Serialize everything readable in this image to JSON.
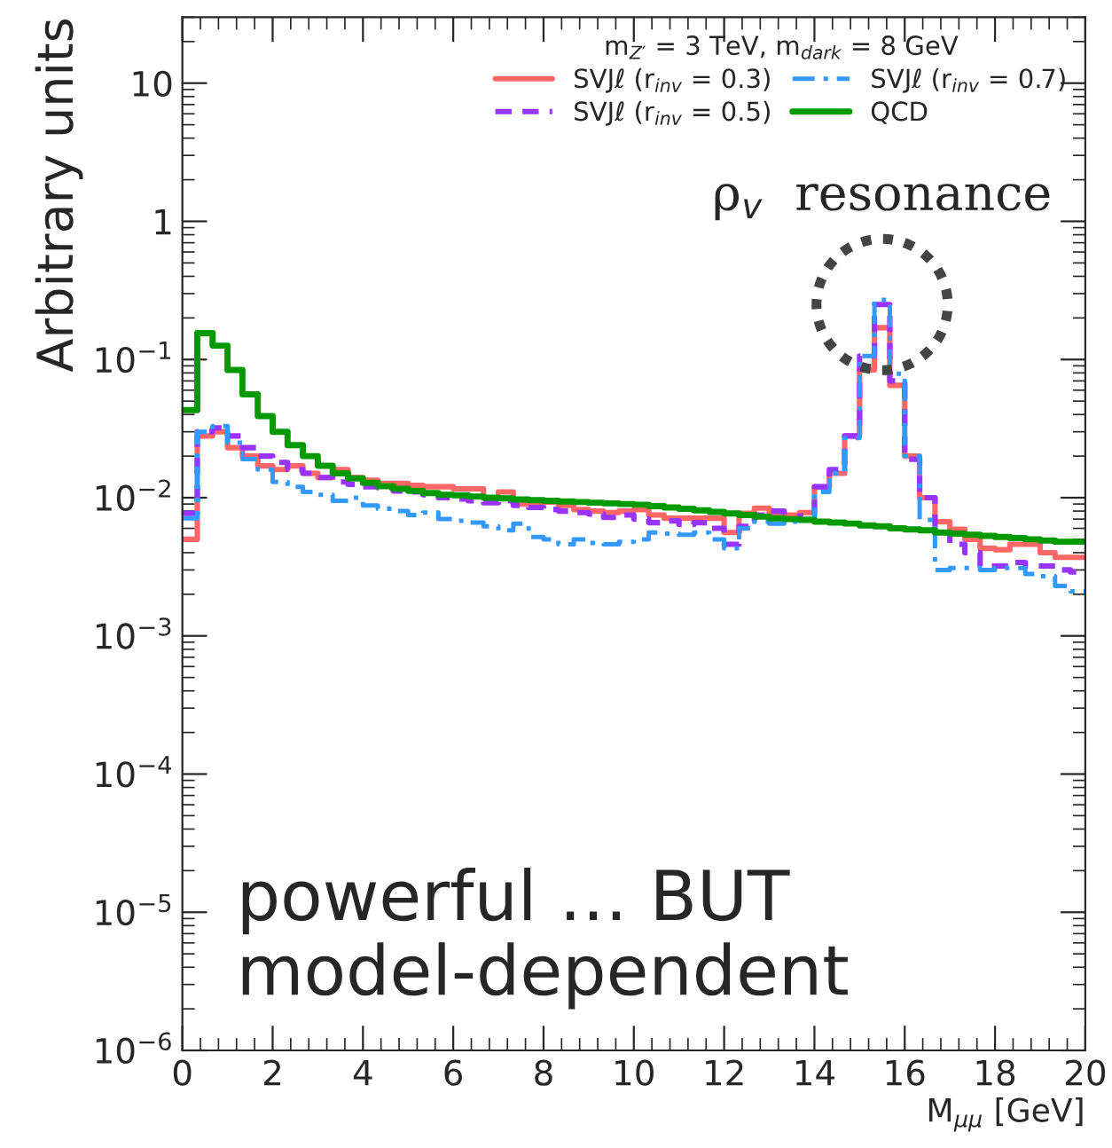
{
  "chart_data": {
    "type": "histogram",
    "xlabel": "M$_{μμ}$ [GeV]",
    "ylabel": "Arbitrary units",
    "legend_title": "m$_{Z′}$ = 3 TeV, m$_{dark}$ = 8 GeV",
    "bins": [
      0,
      0.33,
      0.67,
      1,
      1.33,
      1.67,
      2,
      2.33,
      2.67,
      3,
      3.33,
      3.67,
      4,
      4.33,
      4.67,
      5,
      5.33,
      5.67,
      6,
      6.33,
      6.67,
      7,
      7.33,
      7.67,
      8,
      8.33,
      8.67,
      9,
      9.33,
      9.67,
      10,
      10.33,
      10.67,
      11,
      11.33,
      11.67,
      12,
      12.33,
      12.67,
      13,
      13.33,
      13.67,
      14,
      14.33,
      14.67,
      15,
      15.33,
      15.67,
      16,
      16.33,
      16.67,
      17,
      17.33,
      17.67,
      18,
      18.33,
      18.67,
      19,
      19.33,
      19.67,
      20
    ],
    "series": [
      {
        "name": "SVJℓ (r$_{inv}$ = 0.3)",
        "color": "#ff6666",
        "line_style": "solid",
        "values": [
          0.005,
          0.028,
          0.03,
          0.023,
          0.02,
          0.017,
          0.016,
          0.017,
          0.015,
          0.014,
          0.016,
          0.014,
          0.0134,
          0.0127,
          0.0127,
          0.0123,
          0.012,
          0.012,
          0.0116,
          0.0116,
          0.01,
          0.011,
          0.009,
          0.009,
          0.0093,
          0.0088,
          0.0082,
          0.008,
          0.0078,
          0.008,
          0.0082,
          0.0075,
          0.0071,
          0.0071,
          0.0071,
          0.0071,
          0.0056,
          0.0077,
          0.0084,
          0.0075,
          0.0075,
          0.0078,
          0.0119,
          0.015,
          0.028,
          0.084,
          0.17,
          0.065,
          0.02,
          0.01,
          0.0067,
          0.0059,
          0.005,
          0.0043,
          0.0042,
          0.0046,
          0.0046,
          0.004,
          0.0037,
          0.0037
        ]
      },
      {
        "name": "SVJℓ (r$_{inv}$ = 0.5)",
        "color": "#9933ff",
        "line_style": "dashed",
        "values": [
          0.0077,
          0.03,
          0.032,
          0.028,
          0.023,
          0.02,
          0.018,
          0.016,
          0.015,
          0.014,
          0.013,
          0.0125,
          0.012,
          0.0118,
          0.0112,
          0.011,
          0.0105,
          0.01,
          0.0098,
          0.0095,
          0.0092,
          0.0095,
          0.0088,
          0.0085,
          0.0082,
          0.008,
          0.0078,
          0.0076,
          0.0072,
          0.0075,
          0.007,
          0.0066,
          0.0068,
          0.0064,
          0.0066,
          0.006,
          0.0046,
          0.0062,
          0.0075,
          0.008,
          0.007,
          0.0074,
          0.012,
          0.016,
          0.028,
          0.106,
          0.25,
          0.07,
          0.019,
          0.01,
          0.0056,
          0.0046,
          0.004,
          0.0032,
          0.0032,
          0.0034,
          0.0032,
          0.0032,
          0.003,
          0.0029
        ]
      },
      {
        "name": "SVJℓ (r$_{inv}$ = 0.7)",
        "color": "#3399ff",
        "line_style": "dashdot",
        "values": [
          0.0071,
          0.03,
          0.033,
          0.025,
          0.019,
          0.016,
          0.013,
          0.012,
          0.011,
          0.0105,
          0.0095,
          0.01,
          0.0088,
          0.0083,
          0.008,
          0.0075,
          0.0078,
          0.007,
          0.0068,
          0.0066,
          0.0062,
          0.0058,
          0.0065,
          0.0052,
          0.005,
          0.0046,
          0.005,
          0.0047,
          0.0046,
          0.0048,
          0.005,
          0.0056,
          0.0055,
          0.0054,
          0.0056,
          0.005,
          0.0043,
          0.006,
          0.0067,
          0.0065,
          0.0067,
          0.007,
          0.011,
          0.015,
          0.027,
          0.106,
          0.27,
          0.079,
          0.02,
          0.0069,
          0.003,
          0.0031,
          0.0031,
          0.003,
          0.0031,
          0.0031,
          0.0028,
          0.0027,
          0.0023,
          0.0021
        ]
      },
      {
        "name": "QCD",
        "color": "#009900",
        "line_style": "solid",
        "values": [
          0.043,
          0.155,
          0.126,
          0.084,
          0.056,
          0.039,
          0.03,
          0.024,
          0.02,
          0.017,
          0.015,
          0.0138,
          0.0128,
          0.0121,
          0.0116,
          0.0112,
          0.0108,
          0.0105,
          0.0104,
          0.0102,
          0.01,
          0.0099,
          0.0097,
          0.0096,
          0.0095,
          0.0094,
          0.0093,
          0.0092,
          0.0091,
          0.009,
          0.0089,
          0.0087,
          0.0085,
          0.0083,
          0.0081,
          0.0079,
          0.0077,
          0.0075,
          0.0073,
          0.0071,
          0.007,
          0.0069,
          0.0067,
          0.0066,
          0.0065,
          0.0063,
          0.0062,
          0.006,
          0.0059,
          0.0058,
          0.0056,
          0.0055,
          0.0054,
          0.0053,
          0.0052,
          0.0051,
          0.005,
          0.0049,
          0.0048,
          0.0048
        ]
      }
    ],
    "log": "y",
    "xlim": [
      0,
      20
    ],
    "xticks": [
      0,
      2,
      4,
      6,
      8,
      10,
      12,
      14,
      16,
      18,
      20
    ],
    "ylim": [
      1e-06,
      30
    ],
    "yticks": [
      {
        "value": 1e-06,
        "label": "10$^{−6}$"
      },
      {
        "value": 1e-05,
        "label": "10$^{−5}$"
      },
      {
        "value": 0.0001,
        "label": "10$^{−4}$"
      },
      {
        "value": 0.001,
        "label": "10$^{−3}$"
      },
      {
        "value": 0.01,
        "label": "10$^{−2}$"
      },
      {
        "value": 0.1,
        "label": "10$^{−1}$"
      },
      {
        "value": 1,
        "label": "1"
      },
      {
        "value": 10,
        "label": "10"
      }
    ],
    "legend": "top right",
    "grid": false,
    "annotations": [
      {
        "text": "ρ$_{v}$  resonance",
        "x": 15.5,
        "y": 0.25
      },
      "powerful … BUT\nmodel-dependent"
    ]
  }
}
